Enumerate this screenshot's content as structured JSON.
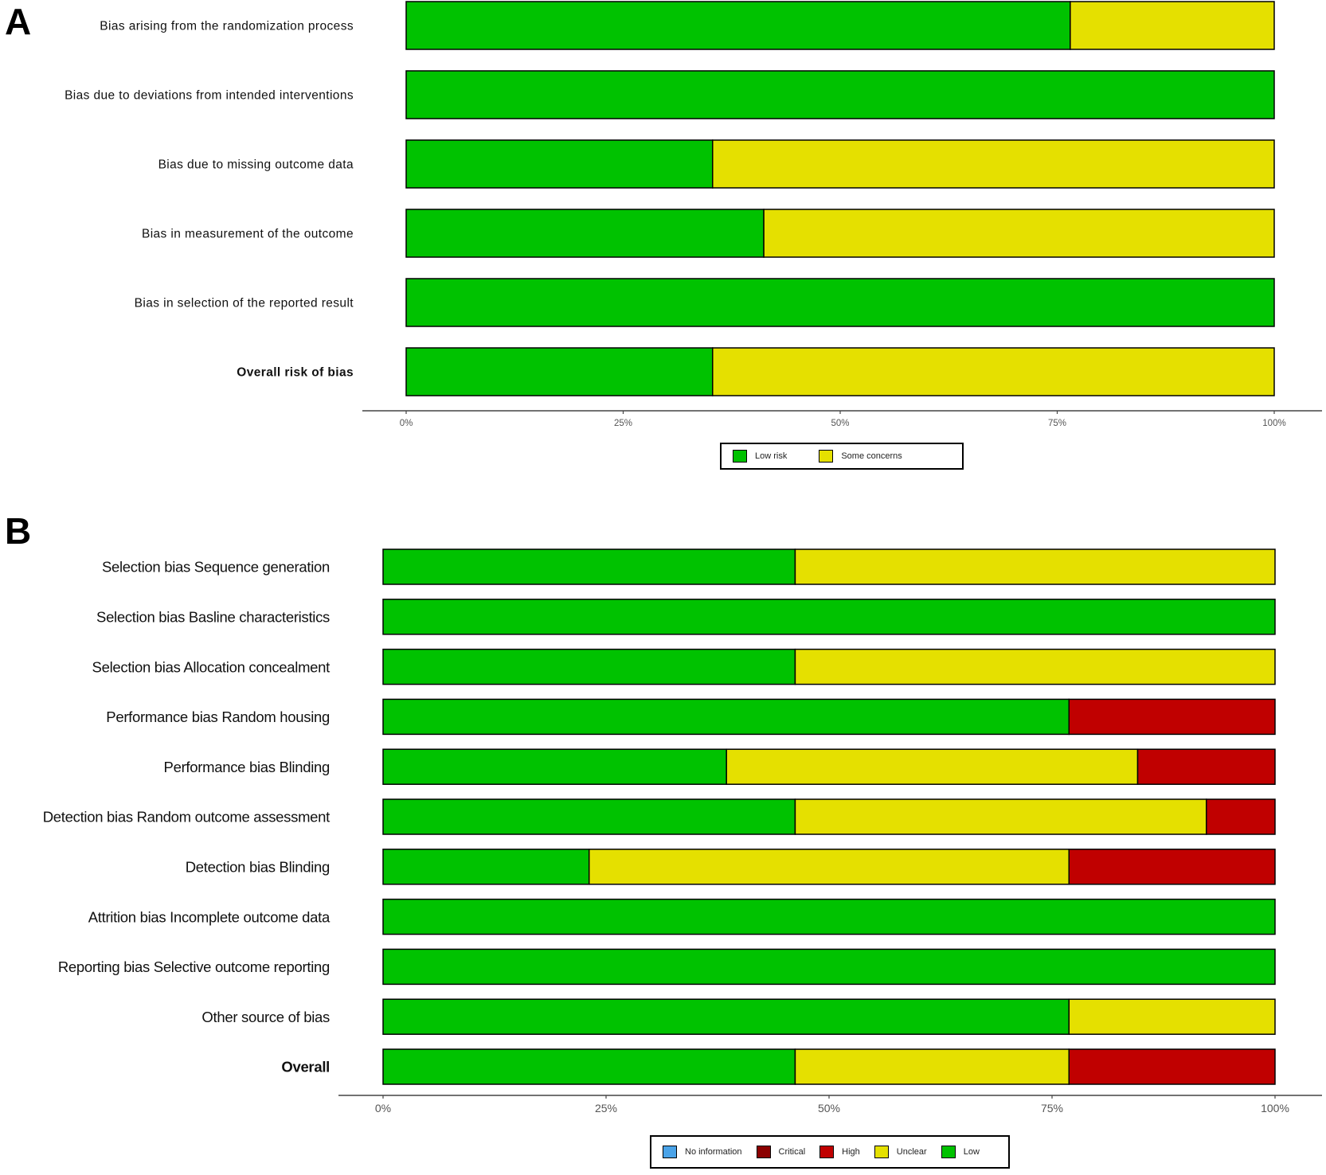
{
  "colors": {
    "low": "#00c200",
    "some_concerns": "#e5e000",
    "unclear": "#e5e000",
    "high": "#c00000",
    "critical": "#8b0000",
    "no_information": "#4aa3e8"
  },
  "chart_data": [
    {
      "panel": "A",
      "type": "bar",
      "orientation": "horizontal",
      "stacked": true,
      "categories": [
        "Bias arising from the randomization process",
        "Bias due to deviations from intended interventions",
        "Bias due to missing outcome data",
        "Bias in measurement of the outcome",
        "Bias in selection of the reported result",
        "Overall risk of bias"
      ],
      "bold_categories": [
        "Overall risk of bias"
      ],
      "series": [
        {
          "name": "Low risk",
          "color_key": "low",
          "values": [
            76.5,
            100,
            35.3,
            41.2,
            100,
            35.3
          ]
        },
        {
          "name": "Some concerns",
          "color_key": "some_concerns",
          "values": [
            23.5,
            0,
            64.7,
            58.8,
            0,
            64.7
          ]
        }
      ],
      "xlim": [
        0,
        100
      ],
      "xticks": [
        "0%",
        "25%",
        "50%",
        "75%",
        "100%"
      ],
      "legend": "bottom-center",
      "legend_entries": [
        {
          "label": "Low risk",
          "color_key": "low"
        },
        {
          "label": "Some concerns",
          "color_key": "some_concerns"
        }
      ]
    },
    {
      "panel": "B",
      "type": "bar",
      "orientation": "horizontal",
      "stacked": true,
      "categories": [
        "Selection bias Sequence generation",
        "Selection bias Basline characteristics",
        "Selection bias Allocation concealment",
        "Performance bias Random housing",
        "Performance bias Blinding",
        "Detection bias Random outcome assessment",
        "Detection bias Blinding",
        "Attrition bias Incomplete outcome data",
        "Reporting bias Selective outcome reporting",
        "Other source of bias",
        "Overall"
      ],
      "bold_categories": [
        "Overall"
      ],
      "series": [
        {
          "name": "Low",
          "color_key": "low",
          "values": [
            46.2,
            100,
            46.2,
            76.9,
            38.5,
            46.2,
            23.1,
            100,
            100,
            76.9,
            46.2
          ]
        },
        {
          "name": "Unclear",
          "color_key": "unclear",
          "values": [
            53.8,
            0,
            53.8,
            0,
            46.1,
            46.1,
            53.8,
            0,
            0,
            23.1,
            30.7
          ]
        },
        {
          "name": "High",
          "color_key": "high",
          "values": [
            0,
            0,
            0,
            23.1,
            15.4,
            7.7,
            23.1,
            0,
            0,
            0,
            23.1
          ]
        }
      ],
      "xlim": [
        0,
        100
      ],
      "xticks": [
        "0%",
        "25%",
        "50%",
        "75%",
        "100%"
      ],
      "legend": "bottom-center",
      "legend_entries": [
        {
          "label": "No information",
          "color_key": "no_information"
        },
        {
          "label": "Critical",
          "color_key": "critical"
        },
        {
          "label": "High",
          "color_key": "high"
        },
        {
          "label": "Unclear",
          "color_key": "unclear"
        },
        {
          "label": "Low",
          "color_key": "low"
        }
      ]
    }
  ]
}
